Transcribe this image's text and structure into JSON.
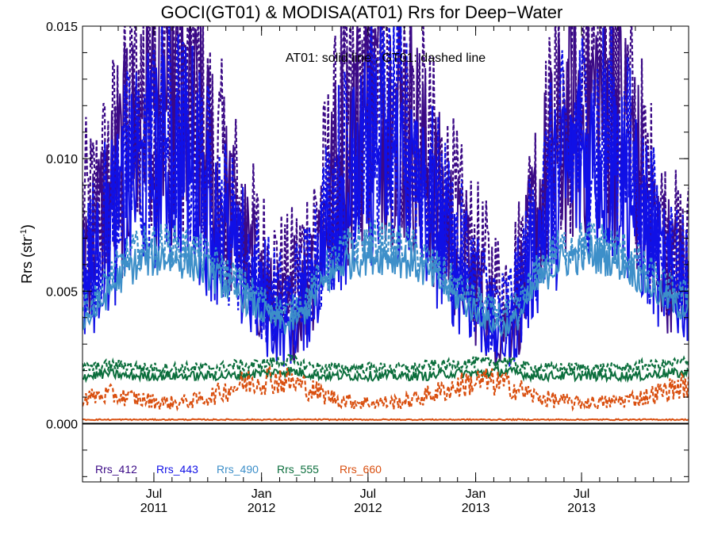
{
  "chart_data": {
    "type": "line",
    "title": "GOCI(GT01) & MODISA(AT01)  Rrs for Deep−Water",
    "ylabel": "Rrs (str",
    "ylabel_sup": "-1",
    "ylabel_close": ")",
    "annotation": "AT01: solid line , GT01: dashed line",
    "ylim": [
      -0.0022,
      0.015
    ],
    "xlim": [
      "2011-03-01",
      "2013-12-31"
    ],
    "yticks": [
      {
        "value": 0.0,
        "label": "0.000"
      },
      {
        "value": 0.005,
        "label": "0.005"
      },
      {
        "value": 0.01,
        "label": "0.010"
      },
      {
        "value": 0.015,
        "label": "0.015"
      }
    ],
    "xticks": [
      {
        "date": "2011-07-01",
        "line1": "Jul",
        "line2": "2011"
      },
      {
        "date": "2012-01-01",
        "line1": "Jan",
        "line2": "2012"
      },
      {
        "date": "2012-07-01",
        "line1": "Jul",
        "line2": "2012"
      },
      {
        "date": "2013-01-01",
        "line1": "Jan",
        "line2": "2013"
      },
      {
        "date": "2013-07-01",
        "line1": "Jul",
        "line2": "2013"
      }
    ],
    "grid": false,
    "legend_position": "bottom-left",
    "series": [
      {
        "name": "Rrs_412",
        "color": "#3b0a86",
        "months": [
          "2011-03",
          "2011-04",
          "2011-05",
          "2011-06",
          "2011-07",
          "2011-08",
          "2011-09",
          "2011-10",
          "2011-11",
          "2011-12",
          "2012-01",
          "2012-02",
          "2012-03",
          "2012-04",
          "2012-05",
          "2012-06",
          "2012-07",
          "2012-08",
          "2012-09",
          "2012-10",
          "2012-11",
          "2012-12",
          "2013-01",
          "2013-02",
          "2013-03",
          "2013-04",
          "2013-05",
          "2013-06",
          "2013-07",
          "2013-08",
          "2013-09",
          "2013-10",
          "2013-11",
          "2013-12"
        ],
        "solid": [
          0.007,
          0.0085,
          0.01,
          0.0115,
          0.0122,
          0.0118,
          0.0108,
          0.009,
          0.0075,
          0.006,
          0.0045,
          0.004,
          0.005,
          0.0075,
          0.01,
          0.0115,
          0.0125,
          0.012,
          0.011,
          0.009,
          0.0075,
          0.006,
          0.0045,
          0.0035,
          0.0045,
          0.008,
          0.01,
          0.0115,
          0.0123,
          0.012,
          0.011,
          0.0085,
          0.0065,
          0.0055
        ],
        "dashed": [
          0.008,
          0.0095,
          0.0115,
          0.0128,
          0.0135,
          0.013,
          0.0118,
          0.01,
          0.0085,
          0.007,
          0.006,
          0.0055,
          0.0065,
          0.0085,
          0.011,
          0.0125,
          0.0135,
          0.013,
          0.012,
          0.01,
          0.0085,
          0.007,
          0.006,
          0.005,
          0.006,
          0.009,
          0.011,
          0.0125,
          0.0135,
          0.013,
          0.012,
          0.0095,
          0.0075,
          0.0065
        ]
      },
      {
        "name": "Rrs_443",
        "color": "#1010e6",
        "months": [
          "2011-03",
          "2011-04",
          "2011-05",
          "2011-06",
          "2011-07",
          "2011-08",
          "2011-09",
          "2011-10",
          "2011-11",
          "2011-12",
          "2012-01",
          "2012-02",
          "2012-03",
          "2012-04",
          "2012-05",
          "2012-06",
          "2012-07",
          "2012-08",
          "2012-09",
          "2012-10",
          "2012-11",
          "2012-12",
          "2013-01",
          "2013-02",
          "2013-03",
          "2013-04",
          "2013-05",
          "2013-06",
          "2013-07",
          "2013-08",
          "2013-09",
          "2013-10",
          "2013-11",
          "2013-12"
        ],
        "solid": [
          0.0055,
          0.007,
          0.0085,
          0.0095,
          0.01,
          0.0098,
          0.009,
          0.0075,
          0.0062,
          0.005,
          0.004,
          0.0035,
          0.0045,
          0.0065,
          0.0085,
          0.0095,
          0.0102,
          0.01,
          0.0092,
          0.0078,
          0.0065,
          0.0052,
          0.004,
          0.0032,
          0.004,
          0.0068,
          0.0085,
          0.0095,
          0.0102,
          0.01,
          0.0092,
          0.0072,
          0.0058,
          0.005
        ],
        "dashed": [
          0.0065,
          0.008,
          0.0095,
          0.0105,
          0.011,
          0.0108,
          0.01,
          0.0085,
          0.0072,
          0.006,
          0.005,
          0.0045,
          0.0055,
          0.0075,
          0.0095,
          0.0105,
          0.0112,
          0.011,
          0.0102,
          0.0088,
          0.0075,
          0.0062,
          0.005,
          0.0042,
          0.005,
          0.0078,
          0.0095,
          0.0105,
          0.0112,
          0.011,
          0.0102,
          0.0082,
          0.0068,
          0.006
        ]
      },
      {
        "name": "Rrs_490",
        "color": "#3d8fc9",
        "months": [
          "2011-03",
          "2011-04",
          "2011-05",
          "2011-06",
          "2011-07",
          "2011-08",
          "2011-09",
          "2011-10",
          "2011-11",
          "2011-12",
          "2012-01",
          "2012-02",
          "2012-03",
          "2012-04",
          "2012-05",
          "2012-06",
          "2012-07",
          "2012-08",
          "2012-09",
          "2012-10",
          "2012-11",
          "2012-12",
          "2013-01",
          "2013-02",
          "2013-03",
          "2013-04",
          "2013-05",
          "2013-06",
          "2013-07",
          "2013-08",
          "2013-09",
          "2013-10",
          "2013-11",
          "2013-12"
        ],
        "solid": [
          0.004,
          0.005,
          0.0058,
          0.0062,
          0.0063,
          0.0062,
          0.006,
          0.0055,
          0.005,
          0.0045,
          0.004,
          0.0037,
          0.0042,
          0.0052,
          0.006,
          0.0063,
          0.0064,
          0.0063,
          0.0061,
          0.0056,
          0.005,
          0.0045,
          0.004,
          0.0036,
          0.004,
          0.0052,
          0.006,
          0.0063,
          0.0064,
          0.0063,
          0.006,
          0.0054,
          0.0048,
          0.0044
        ],
        "dashed": [
          0.0045,
          0.0055,
          0.0063,
          0.0067,
          0.0068,
          0.0067,
          0.0065,
          0.006,
          0.0055,
          0.005,
          0.0045,
          0.0042,
          0.0047,
          0.0057,
          0.0065,
          0.0068,
          0.0069,
          0.0068,
          0.0066,
          0.0061,
          0.0055,
          0.005,
          0.0045,
          0.0041,
          0.0045,
          0.0057,
          0.0065,
          0.0068,
          0.0069,
          0.0068,
          0.0065,
          0.0059,
          0.0053,
          0.0049
        ]
      },
      {
        "name": "Rrs_555",
        "color": "#0b6e3c",
        "months": [
          "2011-03",
          "2011-04",
          "2011-05",
          "2011-06",
          "2011-07",
          "2011-08",
          "2011-09",
          "2011-10",
          "2011-11",
          "2011-12",
          "2012-01",
          "2012-02",
          "2012-03",
          "2012-04",
          "2012-05",
          "2012-06",
          "2012-07",
          "2012-08",
          "2012-09",
          "2012-10",
          "2012-11",
          "2012-12",
          "2013-01",
          "2013-02",
          "2013-03",
          "2013-04",
          "2013-05",
          "2013-06",
          "2013-07",
          "2013-08",
          "2013-09",
          "2013-10",
          "2013-11",
          "2013-12"
        ],
        "solid": [
          0.0018,
          0.0019,
          0.0018,
          0.0018,
          0.0018,
          0.0018,
          0.0018,
          0.0018,
          0.0018,
          0.0019,
          0.0019,
          0.002,
          0.0019,
          0.0018,
          0.0018,
          0.0018,
          0.0018,
          0.0018,
          0.0018,
          0.0018,
          0.0019,
          0.0019,
          0.0019,
          0.002,
          0.0019,
          0.0018,
          0.0018,
          0.0018,
          0.0018,
          0.0018,
          0.0018,
          0.0018,
          0.0019,
          0.0019
        ],
        "dashed": [
          0.0021,
          0.0022,
          0.0022,
          0.0021,
          0.0021,
          0.0021,
          0.0021,
          0.0021,
          0.0022,
          0.0022,
          0.0023,
          0.0024,
          0.0022,
          0.0021,
          0.0021,
          0.0021,
          0.0021,
          0.0021,
          0.0021,
          0.0022,
          0.0022,
          0.0023,
          0.0023,
          0.0024,
          0.0022,
          0.0021,
          0.0021,
          0.0021,
          0.0021,
          0.0021,
          0.0021,
          0.0022,
          0.0022,
          0.0023
        ]
      },
      {
        "name": "Rrs_660",
        "color": "#d94f0f",
        "months": [
          "2011-03",
          "2011-04",
          "2011-05",
          "2011-06",
          "2011-07",
          "2011-08",
          "2011-09",
          "2011-10",
          "2011-11",
          "2011-12",
          "2012-01",
          "2012-02",
          "2012-03",
          "2012-04",
          "2012-05",
          "2012-06",
          "2012-07",
          "2012-08",
          "2012-09",
          "2012-10",
          "2012-11",
          "2012-12",
          "2013-01",
          "2013-02",
          "2013-03",
          "2013-04",
          "2013-05",
          "2013-06",
          "2013-07",
          "2013-08",
          "2013-09",
          "2013-10",
          "2013-11",
          "2013-12"
        ],
        "solid": [
          0.00015,
          0.00015,
          0.00015,
          0.00015,
          0.00015,
          0.00015,
          0.00015,
          0.00015,
          0.00015,
          0.00015,
          0.00015,
          0.00015,
          0.00015,
          0.00015,
          0.00015,
          0.00015,
          0.00015,
          0.00015,
          0.00015,
          0.00015,
          0.00015,
          0.00015,
          0.00015,
          0.00015,
          0.00015,
          0.00015,
          0.00015,
          0.00015,
          0.00015,
          0.00015,
          0.00015,
          0.00015,
          0.00015,
          0.00015
        ],
        "dashed": [
          0.001,
          0.0011,
          0.001,
          0.0009,
          0.0008,
          0.0008,
          0.0009,
          0.0011,
          0.0014,
          0.0016,
          0.0017,
          0.0016,
          0.0014,
          0.0011,
          0.0009,
          0.0008,
          0.0008,
          0.0008,
          0.0009,
          0.0011,
          0.0013,
          0.0015,
          0.0016,
          0.0015,
          0.0013,
          0.001,
          0.0009,
          0.0008,
          0.0008,
          0.0008,
          0.0009,
          0.001,
          0.0012,
          0.0014
        ]
      }
    ]
  }
}
